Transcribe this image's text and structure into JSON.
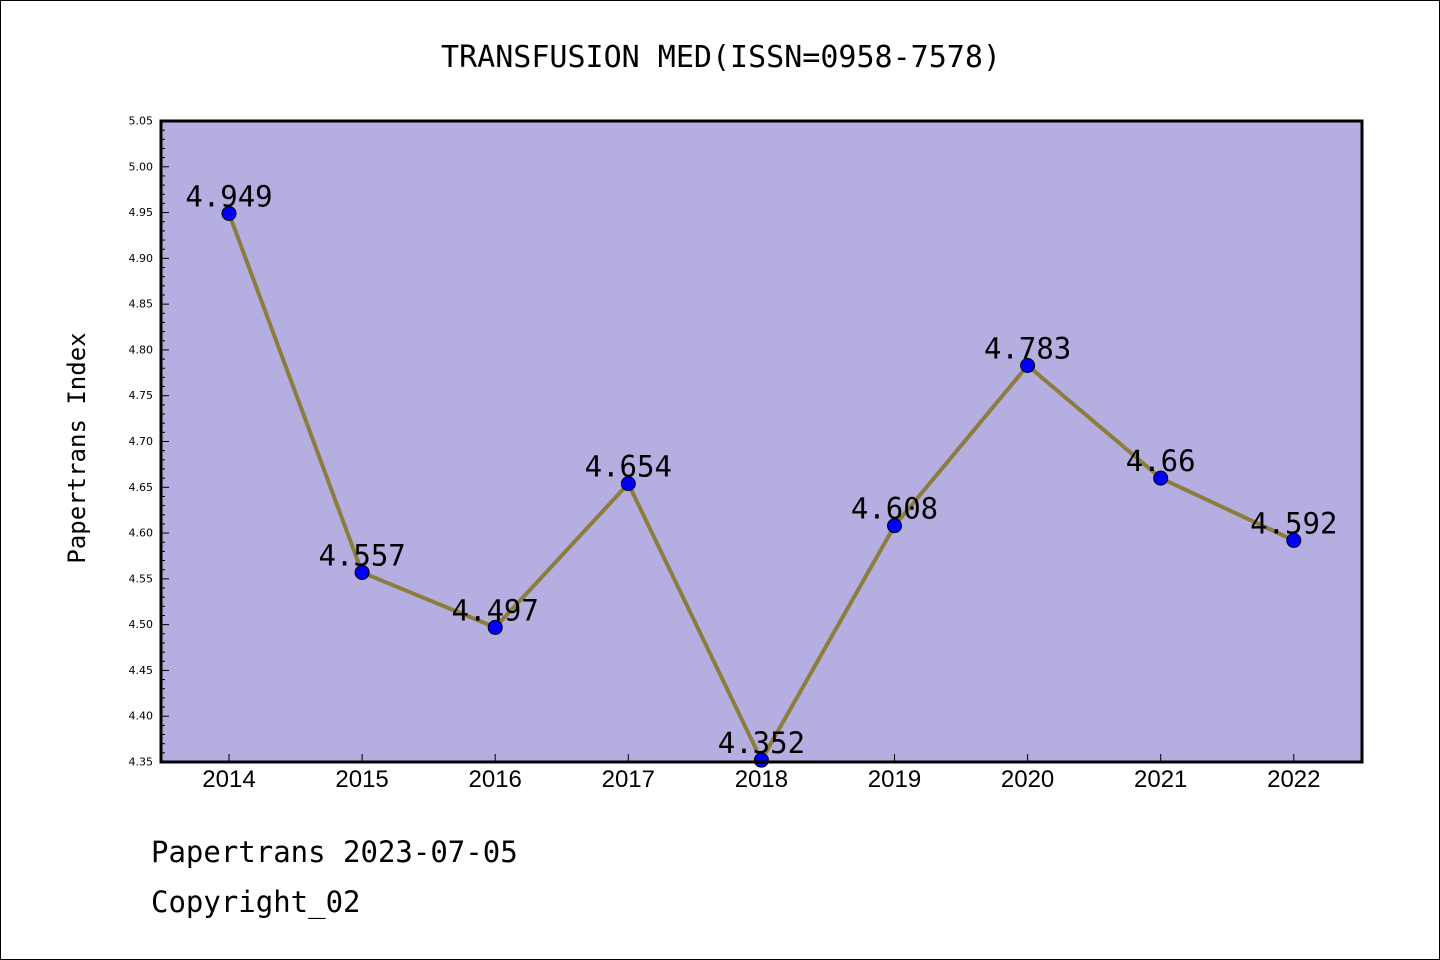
{
  "chart_data": {
    "type": "line",
    "title": "TRANSFUSION MED(ISSN=0958-7578)",
    "xlabel": "",
    "ylabel": "Papertrans Index",
    "categories": [
      "2014",
      "2015",
      "2016",
      "2017",
      "2018",
      "2019",
      "2020",
      "2021",
      "2022"
    ],
    "series": [
      {
        "values": [
          4.949,
          4.557,
          4.497,
          4.654,
          4.352,
          4.608,
          4.783,
          4.66,
          4.592
        ],
        "labels": [
          "4.949",
          "4.557",
          "4.497",
          "4.654",
          "4.352",
          "4.608",
          "4.783",
          "4.66",
          "4.592"
        ]
      }
    ],
    "ylim": [
      4.35,
      5.05
    ],
    "yticks": [
      "4.35",
      "4.40",
      "4.45",
      "4.50",
      "4.55",
      "4.60",
      "4.65",
      "4.70",
      "4.75",
      "4.80",
      "4.85",
      "4.90",
      "4.95",
      "5.00",
      "5.05"
    ],
    "grid": false,
    "colors": {
      "plot_background": "#b5aee1",
      "line": "#8c7d3e",
      "marker": "#0000ff"
    }
  },
  "footer": {
    "line1": "Papertrans 2023-07-05",
    "line2": "Copyright_02"
  }
}
